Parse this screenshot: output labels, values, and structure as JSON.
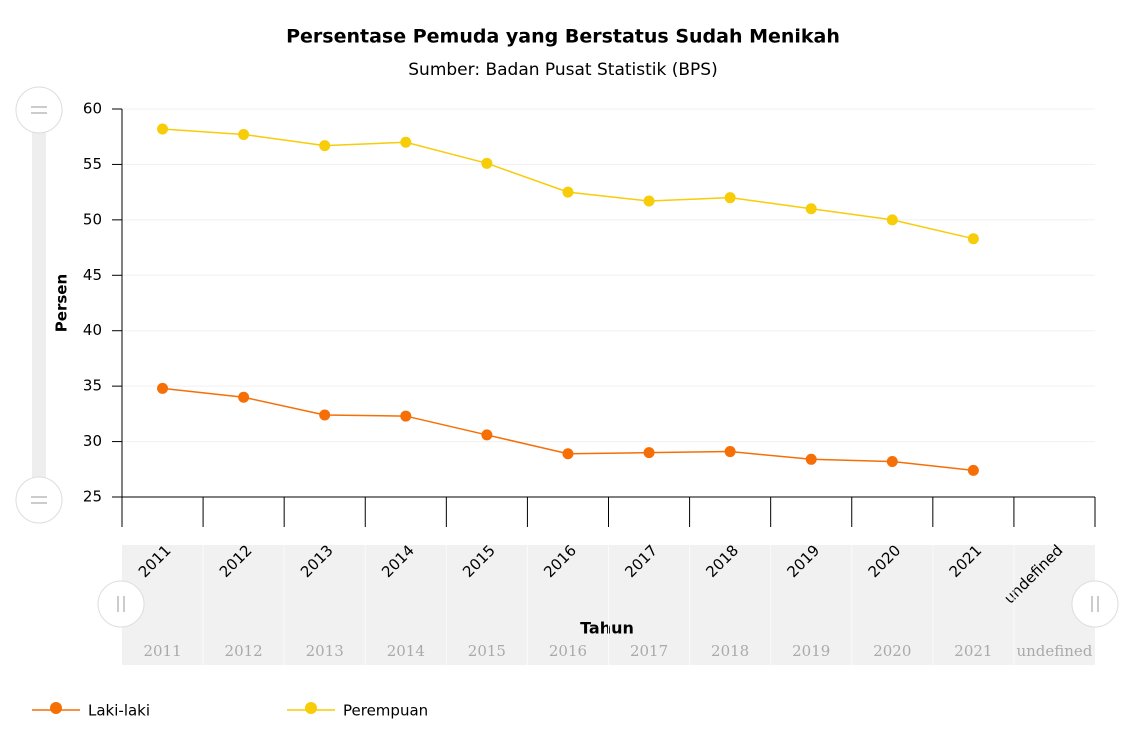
{
  "chart_data": {
    "type": "line",
    "title": "Persentase Pemuda yang Berstatus Sudah Menikah",
    "subtitle": "Sumber: Badan Pusat Statistik (BPS)",
    "x_label": "Tahun",
    "y_label": "Persen",
    "categories": [
      "2011",
      "2012",
      "2013",
      "2014",
      "2015",
      "2016",
      "2017",
      "2018",
      "2019",
      "2020",
      "2021",
      "undefined"
    ],
    "series": [
      {
        "name": "Laki-laki",
        "color": "#f56f06",
        "values": [
          34.8,
          34.0,
          32.4,
          32.3,
          30.6,
          28.9,
          29.0,
          29.1,
          28.4,
          28.2,
          27.4,
          null
        ]
      },
      {
        "name": "Perempuan",
        "color": "#f7cc08",
        "values": [
          58.2,
          57.7,
          56.7,
          57.0,
          55.1,
          52.5,
          51.7,
          52.0,
          51.0,
          50.0,
          48.3,
          null
        ]
      }
    ],
    "ylim": [
      25,
      60
    ],
    "yticks": [
      25,
      30,
      35,
      40,
      45,
      50,
      55,
      60
    ],
    "grid": true,
    "legend": "bottom-left"
  }
}
